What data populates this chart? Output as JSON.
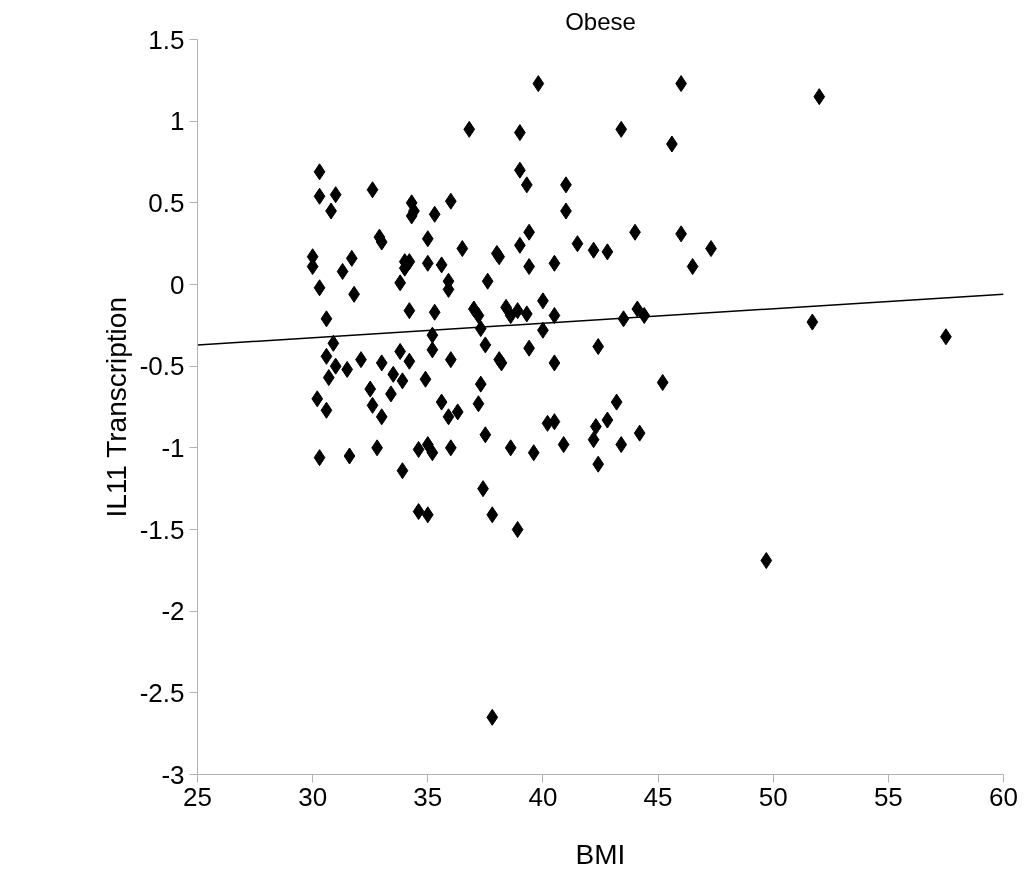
{
  "chart_data": {
    "type": "scatter",
    "title": "Obese",
    "xlabel": "BMI",
    "ylabel": "IL11 Transcription",
    "xlim": [
      25,
      60
    ],
    "xticks": [
      25,
      30,
      35,
      40,
      45,
      50,
      55,
      60
    ],
    "ylim": [
      -3,
      1.5
    ],
    "yticks": [
      -3,
      -2.5,
      -2,
      -1.5,
      -1,
      -0.5,
      0,
      0.5,
      1,
      1.5
    ],
    "grid": false,
    "marker": "diamond",
    "series": [
      {
        "color": "#000000",
        "x": [
          30.3,
          30.3,
          31.0,
          30.8,
          32.6,
          34.3,
          34.4,
          34.3,
          35.3,
          36.0,
          32.9,
          33.0,
          35.0,
          36.5,
          30.0,
          30.0,
          31.7,
          31.3,
          34.0,
          34.2,
          34.0,
          35.0,
          35.6,
          33.8,
          35.9,
          35.9,
          37.6,
          30.3,
          31.8,
          34.2,
          35.3,
          37.0,
          37.2,
          37.3,
          30.6,
          35.2,
          30.9,
          35.2,
          37.5,
          30.6,
          31.0,
          31.5,
          32.1,
          33.0,
          33.8,
          34.2,
          36.0,
          30.7,
          33.5,
          33.9,
          34.9,
          37.3,
          32.5,
          33.4,
          30.2,
          32.6,
          35.6,
          37.2,
          30.6,
          33.0,
          35.9,
          36.3,
          37.5,
          30.3,
          31.6,
          32.8,
          34.6,
          35.0,
          35.2,
          36.0,
          33.9,
          37.4,
          34.6,
          35.0,
          37.8,
          37.8,
          36.8,
          39.8,
          46.0,
          39.0,
          43.4,
          45.6,
          39.0,
          39.3,
          41.0,
          41.0,
          39.4,
          44.0,
          46.0,
          39.0,
          38.0,
          38.1,
          41.5,
          42.2,
          42.8,
          47.3,
          46.5,
          39.4,
          40.5,
          40.0,
          38.4,
          38.6,
          38.9,
          39.3,
          40.5,
          43.5,
          44.1,
          44.4,
          40.0,
          39.4,
          42.4,
          38.1,
          38.2,
          40.5,
          45.2,
          43.2,
          40.5,
          40.2,
          42.8,
          42.3,
          44.2,
          42.2,
          38.6,
          39.6,
          40.9,
          43.4,
          42.4,
          38.9,
          52.0,
          51.7,
          57.5,
          49.7
        ],
        "values": [
          0.69,
          0.54,
          0.55,
          0.45,
          0.58,
          0.5,
          0.45,
          0.42,
          0.43,
          0.51,
          0.29,
          0.26,
          0.28,
          0.22,
          0.17,
          0.11,
          0.16,
          0.08,
          0.14,
          0.14,
          0.1,
          0.13,
          0.12,
          0.01,
          0.02,
          -0.03,
          0.02,
          -0.02,
          -0.06,
          -0.16,
          -0.17,
          -0.15,
          -0.19,
          -0.27,
          -0.21,
          -0.31,
          -0.36,
          -0.4,
          -0.37,
          -0.44,
          -0.5,
          -0.52,
          -0.46,
          -0.48,
          -0.41,
          -0.47,
          -0.46,
          -0.57,
          -0.55,
          -0.59,
          -0.58,
          -0.61,
          -0.64,
          -0.67,
          -0.7,
          -0.74,
          -0.72,
          -0.73,
          -0.77,
          -0.81,
          -0.81,
          -0.78,
          -0.92,
          -1.06,
          -1.05,
          -1.0,
          -1.01,
          -0.98,
          -1.03,
          -1.0,
          -1.14,
          -1.25,
          -1.39,
          -1.41,
          -1.41,
          -2.65,
          0.95,
          1.23,
          1.23,
          0.93,
          0.95,
          0.86,
          0.7,
          0.61,
          0.61,
          0.45,
          0.32,
          0.32,
          0.31,
          0.24,
          0.19,
          0.17,
          0.25,
          0.21,
          0.2,
          0.22,
          0.11,
          0.11,
          0.13,
          -0.1,
          -0.14,
          -0.19,
          -0.16,
          -0.18,
          -0.19,
          -0.21,
          -0.15,
          -0.19,
          -0.28,
          -0.39,
          -0.38,
          -0.46,
          -0.48,
          -0.48,
          -0.6,
          -0.72,
          -0.84,
          -0.85,
          -0.83,
          -0.87,
          -0.91,
          -0.95,
          -1.0,
          -1.03,
          -0.98,
          -0.98,
          -1.1,
          -1.5,
          1.15,
          -0.23,
          -0.32,
          -1.69
        ]
      },
      {
        "type": "line",
        "color": "#000000",
        "x": [
          25,
          60
        ],
        "values": [
          -0.37,
          -0.06
        ],
        "marker": "none"
      }
    ]
  }
}
